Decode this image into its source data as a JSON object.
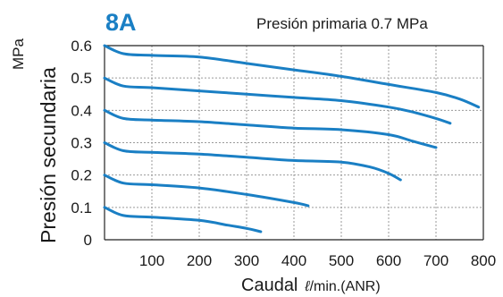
{
  "chart_data": {
    "type": "line",
    "title": "8A",
    "subtitle": "Presión primaria 0.7 MPa",
    "xlabel": "Caudal",
    "xlabel_unit_prefix": "ℓ",
    "xlabel_unit_rest": "/min.(ANR)",
    "ylabel": "Presión secundaria",
    "ylabel_unit": "MPa",
    "xlim": [
      0,
      800
    ],
    "ylim": [
      0,
      0.6
    ],
    "x_ticks": [
      "100",
      "200",
      "300",
      "400",
      "500",
      "600",
      "700",
      "800"
    ],
    "y_ticks": [
      "0",
      "0.1",
      "0.2",
      "0.3",
      "0.4",
      "0.5",
      "0.6"
    ],
    "grid": true,
    "line_color": "#1a7fc4",
    "title_color": "#1a7fc4",
    "series": [
      {
        "x": [
          0,
          40,
          100,
          200,
          300,
          400,
          500,
          600,
          700,
          750,
          790
        ],
        "y": [
          0.6,
          0.575,
          0.57,
          0.565,
          0.545,
          0.525,
          0.505,
          0.48,
          0.455,
          0.435,
          0.41
        ]
      },
      {
        "x": [
          0,
          40,
          100,
          200,
          300,
          400,
          500,
          600,
          650,
          700,
          730
        ],
        "y": [
          0.5,
          0.475,
          0.47,
          0.46,
          0.45,
          0.44,
          0.43,
          0.41,
          0.395,
          0.375,
          0.36
        ]
      },
      {
        "x": [
          0,
          40,
          100,
          200,
          300,
          400,
          500,
          600,
          650,
          700
        ],
        "y": [
          0.4,
          0.375,
          0.37,
          0.365,
          0.355,
          0.345,
          0.34,
          0.325,
          0.305,
          0.285
        ]
      },
      {
        "x": [
          0,
          40,
          100,
          200,
          300,
          400,
          500,
          560,
          600,
          625
        ],
        "y": [
          0.3,
          0.275,
          0.27,
          0.265,
          0.255,
          0.245,
          0.24,
          0.225,
          0.205,
          0.185
        ]
      },
      {
        "x": [
          0,
          40,
          100,
          200,
          300,
          400,
          430
        ],
        "y": [
          0.2,
          0.175,
          0.17,
          0.16,
          0.14,
          0.115,
          0.105
        ]
      },
      {
        "x": [
          0,
          40,
          100,
          200,
          260,
          300,
          330
        ],
        "y": [
          0.1,
          0.075,
          0.07,
          0.06,
          0.045,
          0.035,
          0.025
        ]
      }
    ]
  }
}
